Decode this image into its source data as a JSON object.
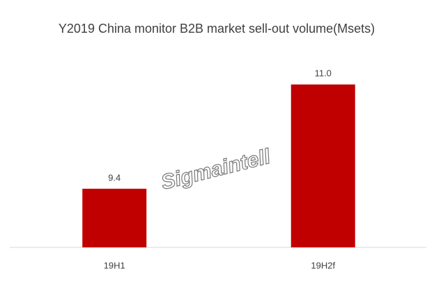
{
  "chart_data": {
    "type": "bar",
    "title": "Y2019 China monitor B2B market sell-out volume(Msets)",
    "categories": [
      "19H1",
      "19H2f"
    ],
    "values": [
      9.4,
      11.0
    ],
    "value_labels": [
      "9.4",
      "11.0"
    ],
    "color": "#c00000",
    "ylim": [
      8.5,
      11.5
    ],
    "watermark": "Sigmaintell"
  }
}
